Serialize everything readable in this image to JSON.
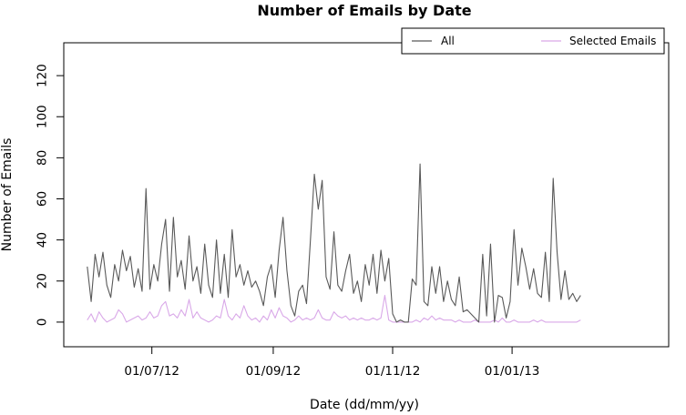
{
  "chart_data": {
    "type": "line",
    "title": "Number of Emails by Date",
    "xlabel": "Date (dd/mm/yy)",
    "ylabel": "Number of Emails",
    "x_tick_labels": [
      "01/07/12",
      "01/09/12",
      "01/11/12",
      "01/01/13"
    ],
    "x_tick_dates": [
      "2012-07-01",
      "2012-09-01",
      "2012-11-01",
      "2013-01-01"
    ],
    "x_range": [
      "2012-05-17",
      "2013-03-22"
    ],
    "ylim": [
      -12,
      136
    ],
    "y_ticks": [
      0,
      20,
      40,
      60,
      80,
      100,
      120
    ],
    "legend_position": "top-right",
    "grid": false,
    "series": [
      {
        "name": "All",
        "color": "#595959",
        "points": [
          [
            "2012-05-29",
            27
          ],
          [
            "2012-05-31",
            10
          ],
          [
            "2012-06-02",
            33
          ],
          [
            "2012-06-04",
            22
          ],
          [
            "2012-06-06",
            34
          ],
          [
            "2012-06-08",
            18
          ],
          [
            "2012-06-10",
            12
          ],
          [
            "2012-06-12",
            28
          ],
          [
            "2012-06-14",
            20
          ],
          [
            "2012-06-16",
            35
          ],
          [
            "2012-06-18",
            25
          ],
          [
            "2012-06-20",
            32
          ],
          [
            "2012-06-22",
            17
          ],
          [
            "2012-06-24",
            26
          ],
          [
            "2012-06-26",
            15
          ],
          [
            "2012-06-28",
            65
          ],
          [
            "2012-06-30",
            16
          ],
          [
            "2012-07-02",
            28
          ],
          [
            "2012-07-04",
            20
          ],
          [
            "2012-07-06",
            38
          ],
          [
            "2012-07-08",
            50
          ],
          [
            "2012-07-10",
            15
          ],
          [
            "2012-07-12",
            51
          ],
          [
            "2012-07-14",
            22
          ],
          [
            "2012-07-16",
            30
          ],
          [
            "2012-07-18",
            16
          ],
          [
            "2012-07-20",
            42
          ],
          [
            "2012-07-22",
            20
          ],
          [
            "2012-07-24",
            27
          ],
          [
            "2012-07-26",
            14
          ],
          [
            "2012-07-28",
            38
          ],
          [
            "2012-07-30",
            18
          ],
          [
            "2012-08-01",
            12
          ],
          [
            "2012-08-03",
            40
          ],
          [
            "2012-08-05",
            14
          ],
          [
            "2012-08-07",
            33
          ],
          [
            "2012-08-09",
            12
          ],
          [
            "2012-08-11",
            45
          ],
          [
            "2012-08-13",
            22
          ],
          [
            "2012-08-15",
            28
          ],
          [
            "2012-08-17",
            18
          ],
          [
            "2012-08-19",
            25
          ],
          [
            "2012-08-21",
            17
          ],
          [
            "2012-08-23",
            20
          ],
          [
            "2012-08-25",
            15
          ],
          [
            "2012-08-27",
            8
          ],
          [
            "2012-08-29",
            22
          ],
          [
            "2012-08-31",
            28
          ],
          [
            "2012-09-02",
            12
          ],
          [
            "2012-09-04",
            35
          ],
          [
            "2012-09-06",
            51
          ],
          [
            "2012-09-08",
            25
          ],
          [
            "2012-09-10",
            8
          ],
          [
            "2012-09-12",
            3
          ],
          [
            "2012-09-14",
            15
          ],
          [
            "2012-09-16",
            18
          ],
          [
            "2012-09-18",
            9
          ],
          [
            "2012-09-20",
            40
          ],
          [
            "2012-09-22",
            72
          ],
          [
            "2012-09-24",
            55
          ],
          [
            "2012-09-26",
            69
          ],
          [
            "2012-09-28",
            22
          ],
          [
            "2012-09-30",
            16
          ],
          [
            "2012-10-02",
            44
          ],
          [
            "2012-10-04",
            18
          ],
          [
            "2012-10-06",
            15
          ],
          [
            "2012-10-08",
            25
          ],
          [
            "2012-10-10",
            33
          ],
          [
            "2012-10-12",
            14
          ],
          [
            "2012-10-14",
            20
          ],
          [
            "2012-10-16",
            10
          ],
          [
            "2012-10-18",
            28
          ],
          [
            "2012-10-20",
            18
          ],
          [
            "2012-10-22",
            33
          ],
          [
            "2012-10-24",
            14
          ],
          [
            "2012-10-26",
            35
          ],
          [
            "2012-10-28",
            20
          ],
          [
            "2012-10-30",
            31
          ],
          [
            "2012-11-01",
            4
          ],
          [
            "2012-11-03",
            0
          ],
          [
            "2012-11-05",
            1
          ],
          [
            "2012-11-07",
            0
          ],
          [
            "2012-11-09",
            0
          ],
          [
            "2012-11-11",
            21
          ],
          [
            "2012-11-13",
            18
          ],
          [
            "2012-11-15",
            77
          ],
          [
            "2012-11-17",
            10
          ],
          [
            "2012-11-19",
            8
          ],
          [
            "2012-11-21",
            27
          ],
          [
            "2012-11-23",
            14
          ],
          [
            "2012-11-25",
            27
          ],
          [
            "2012-11-27",
            10
          ],
          [
            "2012-11-29",
            20
          ],
          [
            "2012-12-01",
            11
          ],
          [
            "2012-12-03",
            8
          ],
          [
            "2012-12-05",
            22
          ],
          [
            "2012-12-07",
            5
          ],
          [
            "2012-12-09",
            6
          ],
          [
            "2012-12-11",
            4
          ],
          [
            "2012-12-13",
            2
          ],
          [
            "2012-12-15",
            0
          ],
          [
            "2012-12-17",
            33
          ],
          [
            "2012-12-19",
            3
          ],
          [
            "2012-12-21",
            38
          ],
          [
            "2012-12-23",
            0
          ],
          [
            "2012-12-25",
            13
          ],
          [
            "2012-12-27",
            12
          ],
          [
            "2012-12-29",
            2
          ],
          [
            "2012-12-31",
            10
          ],
          [
            "2013-01-02",
            45
          ],
          [
            "2013-01-04",
            18
          ],
          [
            "2013-01-06",
            36
          ],
          [
            "2013-01-08",
            27
          ],
          [
            "2013-01-10",
            16
          ],
          [
            "2013-01-12",
            26
          ],
          [
            "2013-01-14",
            14
          ],
          [
            "2013-01-16",
            12
          ],
          [
            "2013-01-18",
            34
          ],
          [
            "2013-01-20",
            10
          ],
          [
            "2013-01-22",
            70
          ],
          [
            "2013-01-24",
            34
          ],
          [
            "2013-01-26",
            11
          ],
          [
            "2013-01-28",
            25
          ],
          [
            "2013-01-30",
            11
          ],
          [
            "2013-02-01",
            14
          ],
          [
            "2013-02-03",
            10
          ],
          [
            "2013-02-05",
            13
          ]
        ]
      },
      {
        "name": "Selected Emails",
        "color": "#d9a8e8",
        "points": [
          [
            "2012-05-29",
            1
          ],
          [
            "2012-05-31",
            4
          ],
          [
            "2012-06-02",
            0
          ],
          [
            "2012-06-04",
            5
          ],
          [
            "2012-06-06",
            2
          ],
          [
            "2012-06-08",
            0
          ],
          [
            "2012-06-10",
            1
          ],
          [
            "2012-06-12",
            2
          ],
          [
            "2012-06-14",
            6
          ],
          [
            "2012-06-16",
            4
          ],
          [
            "2012-06-18",
            0
          ],
          [
            "2012-06-20",
            1
          ],
          [
            "2012-06-22",
            2
          ],
          [
            "2012-06-24",
            3
          ],
          [
            "2012-06-26",
            1
          ],
          [
            "2012-06-28",
            2
          ],
          [
            "2012-06-30",
            5
          ],
          [
            "2012-07-02",
            2
          ],
          [
            "2012-07-04",
            3
          ],
          [
            "2012-07-06",
            8
          ],
          [
            "2012-07-08",
            10
          ],
          [
            "2012-07-10",
            3
          ],
          [
            "2012-07-12",
            4
          ],
          [
            "2012-07-14",
            2
          ],
          [
            "2012-07-16",
            6
          ],
          [
            "2012-07-18",
            3
          ],
          [
            "2012-07-20",
            11
          ],
          [
            "2012-07-22",
            2
          ],
          [
            "2012-07-24",
            5
          ],
          [
            "2012-07-26",
            2
          ],
          [
            "2012-07-28",
            1
          ],
          [
            "2012-07-30",
            0
          ],
          [
            "2012-08-01",
            1
          ],
          [
            "2012-08-03",
            3
          ],
          [
            "2012-08-05",
            2
          ],
          [
            "2012-08-07",
            11
          ],
          [
            "2012-08-09",
            3
          ],
          [
            "2012-08-11",
            1
          ],
          [
            "2012-08-13",
            4
          ],
          [
            "2012-08-15",
            2
          ],
          [
            "2012-08-17",
            8
          ],
          [
            "2012-08-19",
            3
          ],
          [
            "2012-08-21",
            1
          ],
          [
            "2012-08-23",
            2
          ],
          [
            "2012-08-25",
            0
          ],
          [
            "2012-08-27",
            3
          ],
          [
            "2012-08-29",
            1
          ],
          [
            "2012-08-31",
            6
          ],
          [
            "2012-09-02",
            2
          ],
          [
            "2012-09-04",
            7
          ],
          [
            "2012-09-06",
            3
          ],
          [
            "2012-09-08",
            2
          ],
          [
            "2012-09-10",
            0
          ],
          [
            "2012-09-12",
            1
          ],
          [
            "2012-09-14",
            3
          ],
          [
            "2012-09-16",
            1
          ],
          [
            "2012-09-18",
            2
          ],
          [
            "2012-09-20",
            1
          ],
          [
            "2012-09-22",
            2
          ],
          [
            "2012-09-24",
            6
          ],
          [
            "2012-09-26",
            2
          ],
          [
            "2012-09-28",
            1
          ],
          [
            "2012-09-30",
            1
          ],
          [
            "2012-10-02",
            5
          ],
          [
            "2012-10-04",
            3
          ],
          [
            "2012-10-06",
            2
          ],
          [
            "2012-10-08",
            3
          ],
          [
            "2012-10-10",
            1
          ],
          [
            "2012-10-12",
            2
          ],
          [
            "2012-10-14",
            1
          ],
          [
            "2012-10-16",
            2
          ],
          [
            "2012-10-18",
            1
          ],
          [
            "2012-10-20",
            1
          ],
          [
            "2012-10-22",
            2
          ],
          [
            "2012-10-24",
            1
          ],
          [
            "2012-10-26",
            2
          ],
          [
            "2012-10-28",
            13
          ],
          [
            "2012-10-30",
            1
          ],
          [
            "2012-11-01",
            0
          ],
          [
            "2012-11-03",
            0
          ],
          [
            "2012-11-05",
            0
          ],
          [
            "2012-11-07",
            0
          ],
          [
            "2012-11-09",
            0
          ],
          [
            "2012-11-11",
            0
          ],
          [
            "2012-11-13",
            1
          ],
          [
            "2012-11-15",
            0
          ],
          [
            "2012-11-17",
            2
          ],
          [
            "2012-11-19",
            1
          ],
          [
            "2012-11-21",
            3
          ],
          [
            "2012-11-23",
            1
          ],
          [
            "2012-11-25",
            2
          ],
          [
            "2012-11-27",
            1
          ],
          [
            "2012-11-29",
            1
          ],
          [
            "2012-12-01",
            1
          ],
          [
            "2012-12-03",
            0
          ],
          [
            "2012-12-05",
            1
          ],
          [
            "2012-12-07",
            0
          ],
          [
            "2012-12-09",
            0
          ],
          [
            "2012-12-11",
            0
          ],
          [
            "2012-12-13",
            1
          ],
          [
            "2012-12-15",
            0
          ],
          [
            "2012-12-17",
            0
          ],
          [
            "2012-12-19",
            0
          ],
          [
            "2012-12-21",
            0
          ],
          [
            "2012-12-23",
            1
          ],
          [
            "2012-12-25",
            0
          ],
          [
            "2012-12-27",
            2
          ],
          [
            "2012-12-29",
            0
          ],
          [
            "2012-12-31",
            0
          ],
          [
            "2013-01-02",
            1
          ],
          [
            "2013-01-04",
            0
          ],
          [
            "2013-01-06",
            0
          ],
          [
            "2013-01-08",
            0
          ],
          [
            "2013-01-10",
            0
          ],
          [
            "2013-01-12",
            1
          ],
          [
            "2013-01-14",
            0
          ],
          [
            "2013-01-16",
            1
          ],
          [
            "2013-01-18",
            0
          ],
          [
            "2013-01-20",
            0
          ],
          [
            "2013-01-22",
            0
          ],
          [
            "2013-01-24",
            0
          ],
          [
            "2013-01-26",
            0
          ],
          [
            "2013-01-28",
            0
          ],
          [
            "2013-01-30",
            0
          ],
          [
            "2013-02-01",
            0
          ],
          [
            "2013-02-03",
            0
          ],
          [
            "2013-02-05",
            1
          ]
        ]
      }
    ]
  }
}
